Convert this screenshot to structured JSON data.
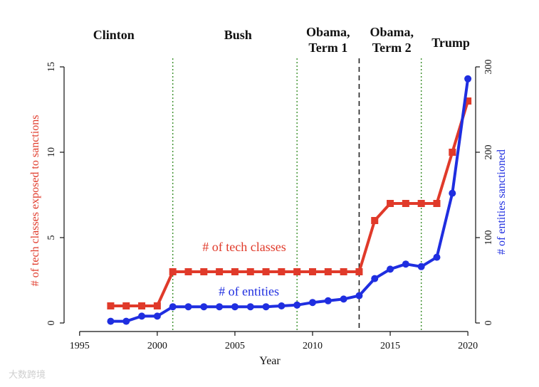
{
  "chart_data": {
    "type": "line",
    "xlabel": "Year",
    "ylabel_left": "# of tech classes exposed to sanctions",
    "ylabel_right": "# of entities sanctioned",
    "xlim": [
      1994,
      2020.5
    ],
    "ylim_left": [
      -0.5,
      15.5
    ],
    "ylim_right": [
      -10,
      310
    ],
    "x_ticks": [
      1995,
      2000,
      2005,
      2010,
      2015,
      2020
    ],
    "y_ticks_left": [
      0,
      5,
      10,
      15
    ],
    "y_ticks_right": [
      0,
      100,
      200,
      300
    ],
    "eras": [
      {
        "label": "Clinton",
        "x": 1997.2
      },
      {
        "label": "Bush",
        "x": 2005.2
      },
      {
        "label": "Obama,\nTerm 1",
        "x": 2011.0
      },
      {
        "label": "Obama,\nTerm 2",
        "x": 2015.1
      },
      {
        "label": "Trump",
        "x": 2018.9
      }
    ],
    "vlines": [
      {
        "x": 2001,
        "style": "green-dotted"
      },
      {
        "x": 2009,
        "style": "green-dotted"
      },
      {
        "x": 2013,
        "style": "black-dashed"
      },
      {
        "x": 2017,
        "style": "green-dotted"
      }
    ],
    "series": [
      {
        "name": "# of tech classes",
        "axis": "left",
        "color": "#e03a2a",
        "marker": "square",
        "label_pos": [
          2005.6,
          4.2
        ],
        "x": [
          1997,
          1998,
          1999,
          2000,
          2001,
          2002,
          2003,
          2004,
          2005,
          2006,
          2007,
          2008,
          2009,
          2010,
          2011,
          2012,
          2013,
          2014,
          2015,
          2016,
          2017,
          2018,
          2019,
          2020
        ],
        "values": [
          1,
          1,
          1,
          1,
          3,
          3,
          3,
          3,
          3,
          3,
          3,
          3,
          3,
          3,
          3,
          3,
          3,
          6,
          7,
          7,
          7,
          7,
          10,
          13
        ]
      },
      {
        "name": "# of entities",
        "axis": "right",
        "color": "#1f2ee0",
        "marker": "circle",
        "label_pos": [
          2005.9,
          32
        ],
        "x": [
          1997,
          1998,
          1999,
          2000,
          2001,
          2002,
          2003,
          2004,
          2005,
          2006,
          2007,
          2008,
          2009,
          2010,
          2011,
          2012,
          2013,
          2014,
          2015,
          2016,
          2017,
          2018,
          2019,
          2020
        ],
        "values": [
          2,
          2,
          8,
          8,
          19,
          19,
          19,
          19,
          19,
          19,
          19,
          20,
          21,
          24,
          26,
          28,
          32,
          52,
          63,
          69,
          66,
          77,
          152,
          286
        ]
      }
    ]
  },
  "watermark": "大数跨境"
}
